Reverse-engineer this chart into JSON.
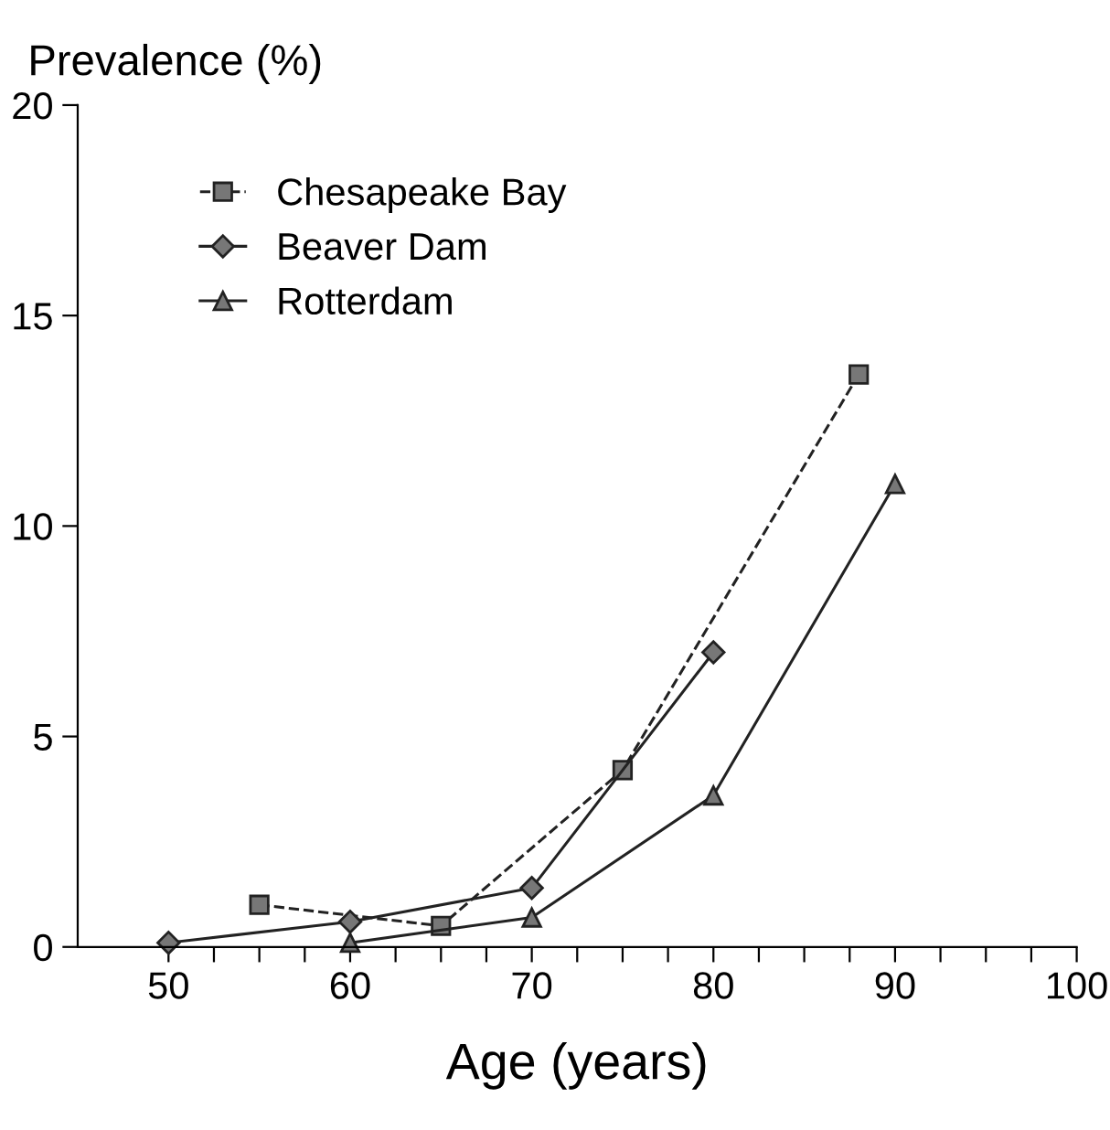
{
  "chart_data": {
    "type": "line",
    "ylabel": "Prevalence (%)",
    "xlabel": "Age (years)",
    "series": [
      {
        "name": "Chesapeake Bay",
        "color": "#222222",
        "marker": "square",
        "line_style": "dashed",
        "x": [
          55,
          65,
          75,
          88
        ],
        "values": [
          1.0,
          0.5,
          4.2,
          13.6
        ]
      },
      {
        "name": "Beaver Dam",
        "color": "#222222",
        "marker": "diamond",
        "line_style": "solid",
        "x": [
          50,
          60,
          70,
          80
        ],
        "values": [
          0.1,
          0.6,
          1.4,
          7.0
        ]
      },
      {
        "name": "Rotterdam",
        "color": "#222222",
        "marker": "triangle",
        "line_style": "solid",
        "x": [
          60,
          70,
          80,
          90
        ],
        "values": [
          0.1,
          0.7,
          3.6,
          11.0
        ]
      }
    ],
    "xlim": [
      45,
      100
    ],
    "ylim": [
      0,
      20
    ],
    "xticks": [
      50,
      {
        "value": 52.5,
        "label": null
      },
      {
        "value": 55,
        "label": null
      },
      {
        "value": 57.5,
        "label": null
      },
      60,
      {
        "value": 62.5,
        "label": null
      },
      {
        "value": 65,
        "label": null
      },
      {
        "value": 67.5,
        "label": null
      },
      70,
      {
        "value": 72.5,
        "label": null
      },
      {
        "value": 75,
        "label": null
      },
      {
        "value": 77.5,
        "label": null
      },
      80,
      {
        "value": 82.5,
        "label": null
      },
      {
        "value": 85,
        "label": null
      },
      {
        "value": 87.5,
        "label": null
      },
      90,
      {
        "value": 92.5,
        "label": null
      },
      {
        "value": 95,
        "label": null
      },
      {
        "value": 97.5,
        "label": null
      },
      100
    ],
    "yticks": [
      0,
      5,
      10,
      15,
      20
    ],
    "grid": false,
    "legend": "top left"
  }
}
